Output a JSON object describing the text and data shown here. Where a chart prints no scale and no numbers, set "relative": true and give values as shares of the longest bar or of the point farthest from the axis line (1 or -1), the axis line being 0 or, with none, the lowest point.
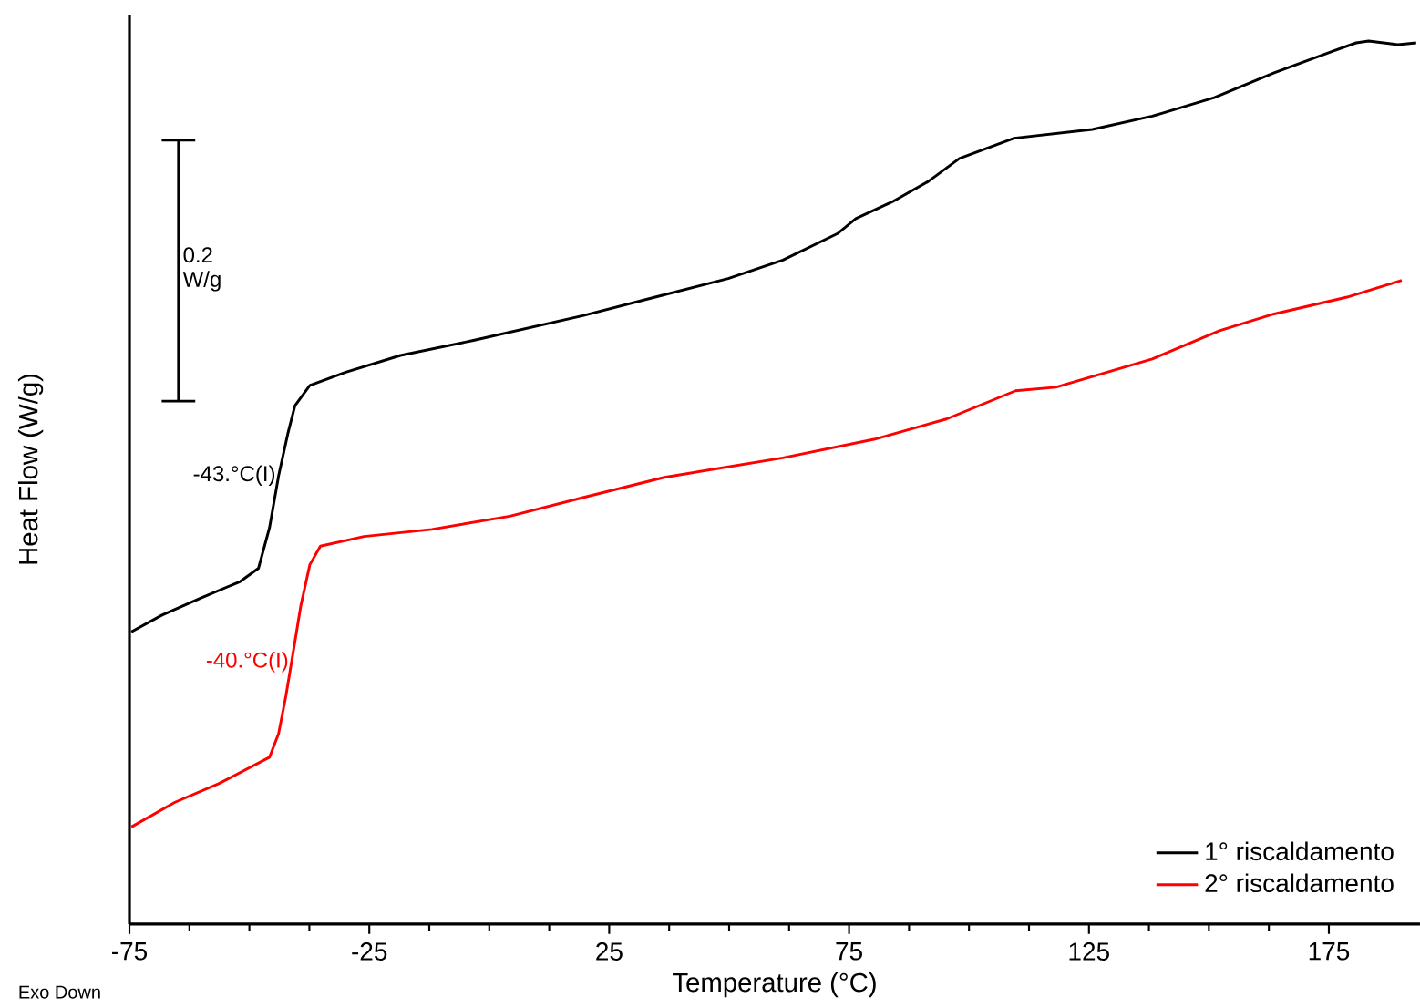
{
  "chart_data": {
    "type": "line",
    "relative": true,
    "xlabel": "Temperature (°C)",
    "ylabel": "Heat Flow (W/g)",
    "xlim": [
      -75,
      194
    ],
    "xticks": [
      -75,
      -25,
      25,
      75,
      125,
      175
    ],
    "legend": "bottom right",
    "grid": false,
    "marker": "none",
    "line_style": "solid",
    "series": [
      {
        "name": "1° riscaldamento",
        "color": "#000000",
        "x": [
          -74.6,
          -68.2,
          -60.2,
          -51.9,
          -48.1,
          -45.8,
          -43.9,
          -42.0,
          -40.5,
          -37.4,
          -29.9,
          -18.5,
          -3.3,
          19.5,
          34.6,
          49.8,
          61.2,
          72.6,
          76.4,
          84.0,
          91.5,
          98.0,
          109.4,
          125.7,
          138.2,
          151.1,
          163.6,
          176.1,
          180.7,
          183.3,
          186.4,
          189.4,
          193.2
        ],
        "values": [
          0.331,
          0.35,
          0.369,
          0.388,
          0.403,
          0.449,
          0.508,
          0.555,
          0.587,
          0.61,
          0.625,
          0.644,
          0.661,
          0.689,
          0.71,
          0.731,
          0.752,
          0.782,
          0.799,
          0.818,
          0.841,
          0.867,
          0.89,
          0.9,
          0.915,
          0.936,
          0.964,
          0.989,
          0.998,
          1.0,
          0.998,
          0.996,
          0.998
        ]
      },
      {
        "name": "2° riscaldamento",
        "color": "#ff0000",
        "x": [
          -74.6,
          -65.5,
          -56.4,
          -45.8,
          -43.9,
          -42.4,
          -41.2,
          -39.3,
          -37.4,
          -35.2,
          -26.1,
          -12.0,
          4.3,
          19.5,
          36.5,
          61.2,
          80.2,
          95.3,
          109.7,
          118.1,
          138.2,
          152.2,
          163.6,
          178.8,
          190.2
        ],
        "values": [
          0.11,
          0.138,
          0.159,
          0.189,
          0.216,
          0.258,
          0.297,
          0.36,
          0.407,
          0.428,
          0.439,
          0.447,
          0.462,
          0.483,
          0.506,
          0.528,
          0.549,
          0.572,
          0.604,
          0.608,
          0.64,
          0.672,
          0.691,
          0.71,
          0.729
        ]
      }
    ],
    "annotations": [
      {
        "text": "-43.°C(I)",
        "x": -43.9,
        "y": 0.508
      },
      {
        "text": "-40.°C(I)",
        "x": -41.2,
        "y": 0.297
      },
      "0.2 W/g",
      "Exo Down"
    ]
  }
}
